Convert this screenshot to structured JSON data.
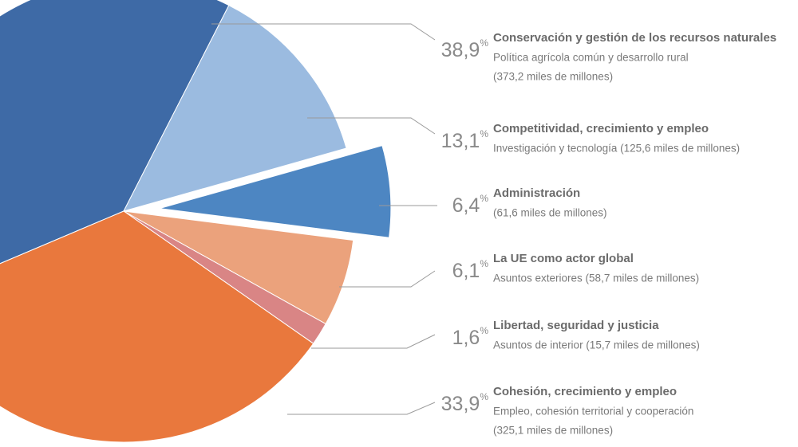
{
  "chart_data": {
    "type": "pie",
    "categories": [
      "Conservación y gestión de los recursos naturales",
      "Competitividad, crecimiento y empleo",
      "Administración",
      "La UE como actor global",
      "Libertad, seguridad y justicia",
      "Cohesión, crecimiento y empleo"
    ],
    "details": [
      [
        "Política agrícola común y desarrollo rural",
        "(373,2 miles de millones)"
      ],
      [
        "Investigación y tecnología (125,6 miles de millones)"
      ],
      [
        "(61,6 miles de millones)"
      ],
      [
        "Asuntos exteriores (58,7 miles de millones)"
      ],
      [
        "Asuntos de interior (15,7 miles de millones)"
      ],
      [
        "Empleo, cohesión territorial y cooperación",
        "(325,1 miles de millones)"
      ]
    ],
    "values": [
      38.9,
      13.1,
      6.4,
      6.1,
      1.6,
      33.9
    ],
    "value_labels": [
      "38,9%",
      "13,1%",
      "6,4%",
      "6,1%",
      "1,6%",
      "33,9%"
    ],
    "colors": [
      "#3e6aa6",
      "#9bbbe0",
      "#4d86c2",
      "#eba27c",
      "#d98585",
      "#e9783d"
    ]
  }
}
